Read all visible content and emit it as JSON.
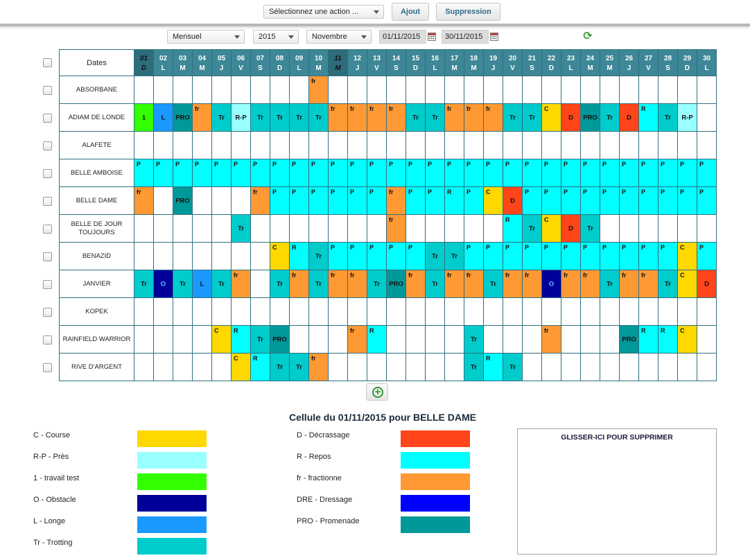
{
  "toolbar": {
    "action_select": "Sélectionnez une action ...",
    "add_label": "Ajout",
    "delete_label": "Suppression"
  },
  "filters": {
    "view_mode": "Mensuel",
    "year": "2015",
    "month": "Novembre",
    "date_from": "01/11/2015",
    "date_to": "30/11/2015"
  },
  "colors": {
    "C": "#ffd800",
    "R-P": "#99ffff",
    "1": "#33ff00",
    "O": "#000099",
    "L": "#1a99ff",
    "Tr": "#00cccc",
    "D": "#ff4519",
    "R": "#00ffff",
    "fr": "#ff9933",
    "DRE": "#0000ff",
    "PRO": "#009999",
    "P": "#00ffff",
    "header": "#3d8796"
  },
  "planning": {
    "dates_label": "Dates",
    "days": [
      {
        "d": "01",
        "w": "D",
        "dim": true
      },
      {
        "d": "02",
        "w": "L"
      },
      {
        "d": "03",
        "w": "M"
      },
      {
        "d": "04",
        "w": "M"
      },
      {
        "d": "05",
        "w": "J"
      },
      {
        "d": "06",
        "w": "V"
      },
      {
        "d": "07",
        "w": "S"
      },
      {
        "d": "08",
        "w": "D"
      },
      {
        "d": "09",
        "w": "L"
      },
      {
        "d": "10",
        "w": "M"
      },
      {
        "d": "11",
        "w": "M",
        "dim": true
      },
      {
        "d": "12",
        "w": "J"
      },
      {
        "d": "13",
        "w": "V"
      },
      {
        "d": "14",
        "w": "S"
      },
      {
        "d": "15",
        "w": "D"
      },
      {
        "d": "16",
        "w": "L"
      },
      {
        "d": "17",
        "w": "M"
      },
      {
        "d": "18",
        "w": "M"
      },
      {
        "d": "19",
        "w": "J"
      },
      {
        "d": "20",
        "w": "V"
      },
      {
        "d": "21",
        "w": "S"
      },
      {
        "d": "22",
        "w": "D"
      },
      {
        "d": "23",
        "w": "L"
      },
      {
        "d": "24",
        "w": "M"
      },
      {
        "d": "25",
        "w": "M"
      },
      {
        "d": "26",
        "w": "J"
      },
      {
        "d": "27",
        "w": "V"
      },
      {
        "d": "28",
        "w": "S"
      },
      {
        "d": "29",
        "w": "D"
      },
      {
        "d": "30",
        "w": "L"
      }
    ],
    "horses": [
      {
        "name": "ABSORBANE",
        "cells": [
          "",
          "",
          "",
          "",
          "",
          "",
          "",
          "",
          "",
          "fr",
          "",
          "",
          "",
          "",
          "",
          "",
          "",
          "",
          "",
          "",
          "",
          "",
          "",
          "",
          "",
          "",
          "",
          "",
          "",
          ""
        ]
      },
      {
        "name": "ADIAM DE LONDE",
        "cells": [
          "1",
          "L",
          "PRO",
          "fr",
          "Tr",
          "R-P",
          "Tr",
          "Tr",
          "Tr",
          "Tr",
          "fr",
          "fr",
          "fr",
          "fr",
          "Tr",
          "Tr",
          "fr",
          "fr",
          "fr",
          "Tr",
          "Tr",
          "C",
          "D",
          "PRO",
          "Tr",
          "D",
          "R",
          "Tr",
          "R-P",
          ""
        ]
      },
      {
        "name": "ALAFETE",
        "cells": [
          "",
          "",
          "",
          "",
          "",
          "",
          "",
          "",
          "",
          "",
          "",
          "",
          "",
          "",
          "",
          "",
          "",
          "",
          "",
          "",
          "",
          "",
          "",
          "",
          "",
          "",
          "",
          "",
          "",
          ""
        ]
      },
      {
        "name": "BELLE AMBOISE",
        "cells": [
          "P",
          "P",
          "P",
          "P",
          "P",
          "P",
          "P",
          "P",
          "P",
          "P",
          "P",
          "P",
          "P",
          "P",
          "P",
          "P",
          "P",
          "P",
          "P",
          "P",
          "P",
          "P",
          "P",
          "P",
          "P",
          "P",
          "P",
          "P",
          "P",
          "P"
        ]
      },
      {
        "name": "BELLE DAME",
        "cells": [
          "fr",
          "",
          "PRO",
          "",
          "",
          "",
          "fr",
          "P",
          "P",
          "P",
          "P",
          "P",
          "P",
          "fr",
          "P",
          "P",
          "R",
          "P",
          "C",
          "D",
          "P",
          "P",
          "P",
          "P",
          "P",
          "P",
          "P",
          "P",
          "P",
          "P"
        ]
      },
      {
        "name": "BELLE DE JOUR TOUJOURS",
        "cells": [
          "",
          "",
          "",
          "",
          "",
          "Tr",
          "",
          "",
          "",
          "",
          "",
          "",
          "",
          "fr",
          "",
          "",
          "",
          "",
          "",
          "R",
          "Tr",
          "C",
          "D",
          "Tr",
          "",
          "",
          "",
          "",
          "",
          ""
        ]
      },
      {
        "name": "BENAZID",
        "cells": [
          "",
          "",
          "",
          "",
          "",
          "",
          "",
          "C",
          "R",
          "Tr",
          "P",
          "P",
          "P",
          "P",
          "P",
          "Tr",
          "Tr",
          "P",
          "P",
          "P",
          "P",
          "P",
          "P",
          "P",
          "P",
          "P",
          "P",
          "P",
          "C",
          "P"
        ]
      },
      {
        "name": "JANVIER",
        "cells": [
          "Tr",
          "O",
          "Tr",
          "L",
          "Tr",
          "fr",
          "",
          "Tr",
          "fr",
          "Tr",
          "fr",
          "fr",
          "Tr",
          "PRO",
          "fr",
          "Tr",
          "fr",
          "fr",
          "Tr",
          "fr",
          "fr",
          "O",
          "fr",
          "fr",
          "Tr",
          "fr",
          "fr",
          "Tr",
          "C",
          "D"
        ]
      },
      {
        "name": "KOPEK",
        "cells": [
          "",
          "",
          "",
          "",
          "",
          "",
          "",
          "",
          "",
          "",
          "",
          "",
          "",
          "",
          "",
          "",
          "",
          "",
          "",
          "",
          "",
          "",
          "",
          "",
          "",
          "",
          "",
          "",
          "",
          ""
        ]
      },
      {
        "name": "RAINFIELD WARRIOR",
        "cells": [
          "",
          "",
          "",
          "",
          "C",
          "R",
          "Tr",
          "PRO",
          "",
          "",
          "",
          "fr",
          "R",
          "",
          "",
          "",
          "",
          "Tr",
          "",
          "",
          "",
          "fr",
          "",
          "",
          "",
          "PRO",
          "R",
          "R",
          "C",
          ""
        ]
      },
      {
        "name": "RIVE D'ARGENT",
        "cells": [
          "",
          "",
          "",
          "",
          "",
          "C",
          "R",
          "Tr",
          "Tr",
          "fr",
          "",
          "",
          "",
          "",
          "",
          "",
          "",
          "Tr",
          "R",
          "Tr",
          "",
          "",
          "",
          "",
          "",
          "",
          "",
          "",
          "",
          ""
        ]
      }
    ]
  },
  "cell_info": "Cellule du 01/11/2015 pour BELLE DAME",
  "legend": {
    "left": [
      {
        "label": "C - Course",
        "code": "C"
      },
      {
        "label": "R-P - Près",
        "code": "R-P"
      },
      {
        "label": "1 - travail test",
        "code": "1"
      },
      {
        "label": "O - Obstacle",
        "code": "O"
      },
      {
        "label": "L - Longe",
        "code": "L"
      },
      {
        "label": "Tr - Trotting",
        "code": "Tr"
      }
    ],
    "right": [
      {
        "label": "D - Décrassage",
        "code": "D"
      },
      {
        "label": "R - Repos",
        "code": "R"
      },
      {
        "label": "fr - fractionne",
        "code": "fr"
      },
      {
        "label": "DRE - Dressage",
        "code": "DRE"
      },
      {
        "label": "PRO - Promenade",
        "code": "PRO"
      }
    ]
  },
  "trash_zone": "GLISSER-ICI POUR SUPPRIMER"
}
